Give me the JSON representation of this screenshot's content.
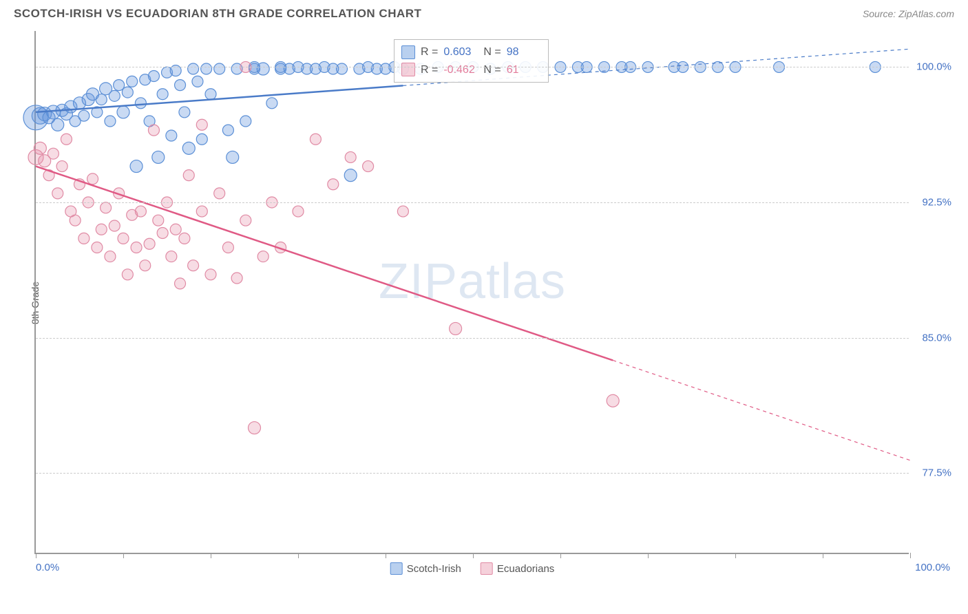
{
  "header": {
    "title": "SCOTCH-IRISH VS ECUADORIAN 8TH GRADE CORRELATION CHART",
    "source": "Source: ZipAtlas.com"
  },
  "chart": {
    "type": "scatter",
    "ylabel": "8th Grade",
    "watermark": "ZIPatlas",
    "background_color": "#ffffff",
    "grid_color": "#cccccc",
    "axis_color": "#999999",
    "label_color_axis": "#4472c4",
    "xlim": [
      0,
      100
    ],
    "ylim": [
      73,
      102
    ],
    "x_ticks": [
      0,
      10,
      20,
      30,
      40,
      50,
      60,
      70,
      80,
      90,
      100
    ],
    "x_tick_labels": {
      "left": "0.0%",
      "right": "100.0%"
    },
    "y_gridlines": [
      77.5,
      85.0,
      92.5,
      100.0
    ],
    "y_tick_labels": [
      "77.5%",
      "85.0%",
      "92.5%",
      "100.0%"
    ],
    "series": [
      {
        "name": "Scotch-Irish",
        "color_fill": "rgba(100,150,220,0.35)",
        "color_stroke": "#5b8fd6",
        "trend": {
          "x1": 0,
          "y1": 97.5,
          "x2": 100,
          "y2": 101.0,
          "solid_until_x": 42,
          "color": "#4a7bc8",
          "width": 2.5
        },
        "R": "0.603",
        "N": "98",
        "points": [
          [
            0,
            97.2,
            18
          ],
          [
            0.5,
            97.3,
            12
          ],
          [
            1,
            97.4,
            10
          ],
          [
            1.5,
            97.2,
            9
          ],
          [
            2,
            97.5,
            10
          ],
          [
            2.5,
            96.8,
            9
          ],
          [
            3,
            97.6,
            9
          ],
          [
            3.5,
            97.4,
            9
          ],
          [
            4,
            97.8,
            9
          ],
          [
            4.5,
            97.0,
            8
          ],
          [
            5,
            98.0,
            9
          ],
          [
            5.5,
            97.3,
            8
          ],
          [
            6,
            98.2,
            9
          ],
          [
            6.5,
            98.5,
            9
          ],
          [
            7,
            97.5,
            8
          ],
          [
            7.5,
            98.2,
            8
          ],
          [
            8,
            98.8,
            9
          ],
          [
            8.5,
            97.0,
            8
          ],
          [
            9,
            98.4,
            8
          ],
          [
            9.5,
            99.0,
            8
          ],
          [
            10,
            97.5,
            9
          ],
          [
            10.5,
            98.6,
            8
          ],
          [
            11,
            99.2,
            8
          ],
          [
            11.5,
            94.5,
            9
          ],
          [
            12,
            98.0,
            8
          ],
          [
            12.5,
            99.3,
            8
          ],
          [
            13,
            97.0,
            8
          ],
          [
            13.5,
            99.5,
            8
          ],
          [
            14,
            95.0,
            9
          ],
          [
            14.5,
            98.5,
            8
          ],
          [
            15,
            99.7,
            8
          ],
          [
            15.5,
            96.2,
            8
          ],
          [
            16,
            99.8,
            8
          ],
          [
            16.5,
            99.0,
            8
          ],
          [
            17,
            97.5,
            8
          ],
          [
            17.5,
            95.5,
            9
          ],
          [
            18,
            99.9,
            8
          ],
          [
            18.5,
            99.2,
            8
          ],
          [
            19,
            96.0,
            8
          ],
          [
            19.5,
            99.9,
            8
          ],
          [
            20,
            98.5,
            8
          ],
          [
            21,
            99.9,
            8
          ],
          [
            22,
            96.5,
            8
          ],
          [
            22.5,
            95.0,
            9
          ],
          [
            23,
            99.9,
            8
          ],
          [
            24,
            97.0,
            8
          ],
          [
            25,
            99.9,
            8
          ],
          [
            25,
            100,
            8
          ],
          [
            26,
            99.9,
            9
          ],
          [
            27,
            98.0,
            8
          ],
          [
            28,
            99.9,
            8
          ],
          [
            28,
            100,
            8
          ],
          [
            29,
            99.9,
            8
          ],
          [
            30,
            100,
            8
          ],
          [
            31,
            99.9,
            8
          ],
          [
            32,
            99.9,
            8
          ],
          [
            33,
            100,
            8
          ],
          [
            34,
            99.9,
            8
          ],
          [
            35,
            99.9,
            8
          ],
          [
            36,
            94.0,
            9
          ],
          [
            37,
            99.9,
            8
          ],
          [
            38,
            100,
            8
          ],
          [
            39,
            99.9,
            8
          ],
          [
            40,
            99.9,
            8
          ],
          [
            41,
            100,
            8
          ],
          [
            42,
            99.9,
            8
          ],
          [
            44,
            99.9,
            8
          ],
          [
            46,
            100,
            8
          ],
          [
            48,
            100,
            8
          ],
          [
            50,
            100,
            8
          ],
          [
            52,
            99.9,
            8
          ],
          [
            54,
            100,
            8
          ],
          [
            56,
            100,
            8
          ],
          [
            58,
            100,
            8
          ],
          [
            60,
            100,
            8
          ],
          [
            62,
            100,
            8
          ],
          [
            63,
            100,
            8
          ],
          [
            65,
            100,
            8
          ],
          [
            67,
            100,
            8
          ],
          [
            68,
            100,
            8
          ],
          [
            70,
            100,
            8
          ],
          [
            73,
            100,
            8
          ],
          [
            74,
            100,
            8
          ],
          [
            76,
            100,
            8
          ],
          [
            78,
            100,
            8
          ],
          [
            80,
            100,
            8
          ],
          [
            85,
            100,
            8
          ],
          [
            96,
            100,
            8
          ]
        ]
      },
      {
        "name": "Ecuadorians",
        "color_fill": "rgba(230,140,165,0.30)",
        "color_stroke": "#e08aa4",
        "trend": {
          "x1": 0,
          "y1": 94.5,
          "x2": 100,
          "y2": 78.2,
          "solid_until_x": 66,
          "color": "#e05a85",
          "width": 2.5
        },
        "R": "-0.462",
        "N": "61",
        "points": [
          [
            0,
            95.0,
            11
          ],
          [
            0.5,
            95.5,
            9
          ],
          [
            1,
            94.8,
            9
          ],
          [
            1.5,
            94.0,
            8
          ],
          [
            2,
            95.2,
            8
          ],
          [
            2.5,
            93.0,
            8
          ],
          [
            3,
            94.5,
            8
          ],
          [
            3.5,
            96.0,
            8
          ],
          [
            4,
            92.0,
            8
          ],
          [
            4.5,
            91.5,
            8
          ],
          [
            5,
            93.5,
            8
          ],
          [
            5.5,
            90.5,
            8
          ],
          [
            6,
            92.5,
            8
          ],
          [
            6.5,
            93.8,
            8
          ],
          [
            7,
            90.0,
            8
          ],
          [
            7.5,
            91.0,
            8
          ],
          [
            8,
            92.2,
            8
          ],
          [
            8.5,
            89.5,
            8
          ],
          [
            9,
            91.2,
            8
          ],
          [
            9.5,
            93.0,
            8
          ],
          [
            10,
            90.5,
            8
          ],
          [
            10.5,
            88.5,
            8
          ],
          [
            11,
            91.8,
            8
          ],
          [
            11.5,
            90.0,
            8
          ],
          [
            12,
            92.0,
            8
          ],
          [
            12.5,
            89.0,
            8
          ],
          [
            13,
            90.2,
            8
          ],
          [
            13.5,
            96.5,
            8
          ],
          [
            14,
            91.5,
            8
          ],
          [
            14.5,
            90.8,
            8
          ],
          [
            15,
            92.5,
            8
          ],
          [
            15.5,
            89.5,
            8
          ],
          [
            16,
            91.0,
            8
          ],
          [
            16.5,
            88.0,
            8
          ],
          [
            17,
            90.5,
            8
          ],
          [
            17.5,
            94.0,
            8
          ],
          [
            18,
            89.0,
            8
          ],
          [
            19,
            92.0,
            8
          ],
          [
            19,
            96.8,
            8
          ],
          [
            20,
            88.5,
            8
          ],
          [
            21,
            93.0,
            8
          ],
          [
            22,
            90.0,
            8
          ],
          [
            23,
            88.3,
            8
          ],
          [
            24,
            91.5,
            8
          ],
          [
            24,
            100,
            8
          ],
          [
            25,
            80.0,
            9
          ],
          [
            26,
            89.5,
            8
          ],
          [
            27,
            92.5,
            8
          ],
          [
            28,
            90.0,
            8
          ],
          [
            30,
            92.0,
            8
          ],
          [
            32,
            96.0,
            8
          ],
          [
            34,
            93.5,
            8
          ],
          [
            36,
            95.0,
            8
          ],
          [
            38,
            94.5,
            8
          ],
          [
            42,
            92.0,
            8
          ],
          [
            48,
            85.5,
            9
          ],
          [
            66,
            81.5,
            9
          ]
        ]
      }
    ],
    "legend_bottom": [
      {
        "label": "Scotch-Irish",
        "fill": "rgba(100,150,220,0.45)",
        "stroke": "#5b8fd6"
      },
      {
        "label": "Ecuadorians",
        "fill": "rgba(230,140,165,0.40)",
        "stroke": "#e08aa4"
      }
    ]
  }
}
